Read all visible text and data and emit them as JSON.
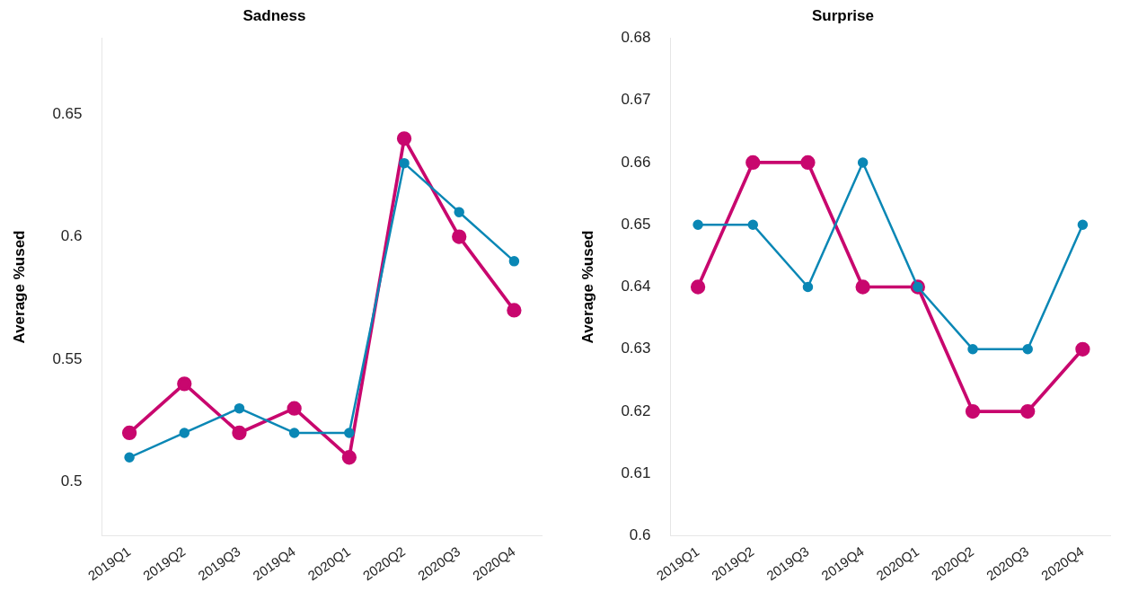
{
  "chart_data": [
    {
      "type": "line",
      "title": "Sadness",
      "ylabel": "Average %used",
      "categories": [
        "2019Q1",
        "2019Q2",
        "2019Q3",
        "2019Q4",
        "2020Q1",
        "2020Q2",
        "2020Q3",
        "2020Q4"
      ],
      "series": [
        {
          "color": "#0a87b5",
          "values": [
            0.51,
            0.52,
            0.53,
            0.52,
            0.52,
            0.63,
            0.61,
            0.59
          ]
        },
        {
          "color": "#c8076e",
          "values": [
            0.52,
            0.54,
            0.52,
            0.53,
            0.51,
            0.64,
            0.6,
            0.57
          ]
        }
      ],
      "ylim": [
        0.478,
        0.681
      ],
      "yticks": [
        0.5,
        0.55,
        0.6,
        0.65
      ],
      "grid": false,
      "legend": false,
      "marker": "circle",
      "line_style": "solid"
    },
    {
      "type": "line",
      "title": "Surprise",
      "ylabel": "Average %used",
      "categories": [
        "2019Q1",
        "2019Q2",
        "2019Q3",
        "2019Q4",
        "2020Q1",
        "2020Q2",
        "2020Q3",
        "2020Q4"
      ],
      "series": [
        {
          "color": "#0a87b5",
          "values": [
            0.65,
            0.65,
            0.64,
            0.66,
            0.64,
            0.63,
            0.63,
            0.65
          ]
        },
        {
          "color": "#c8076e",
          "values": [
            0.64,
            0.66,
            0.66,
            0.64,
            0.64,
            0.62,
            0.62,
            0.63
          ]
        }
      ],
      "ylim": [
        0.6,
        0.68
      ],
      "yticks": [
        0.6,
        0.61,
        0.62,
        0.63,
        0.64,
        0.65,
        0.66,
        0.67,
        0.68
      ],
      "grid": false,
      "legend": false,
      "marker": "circle",
      "line_style": "solid"
    }
  ]
}
